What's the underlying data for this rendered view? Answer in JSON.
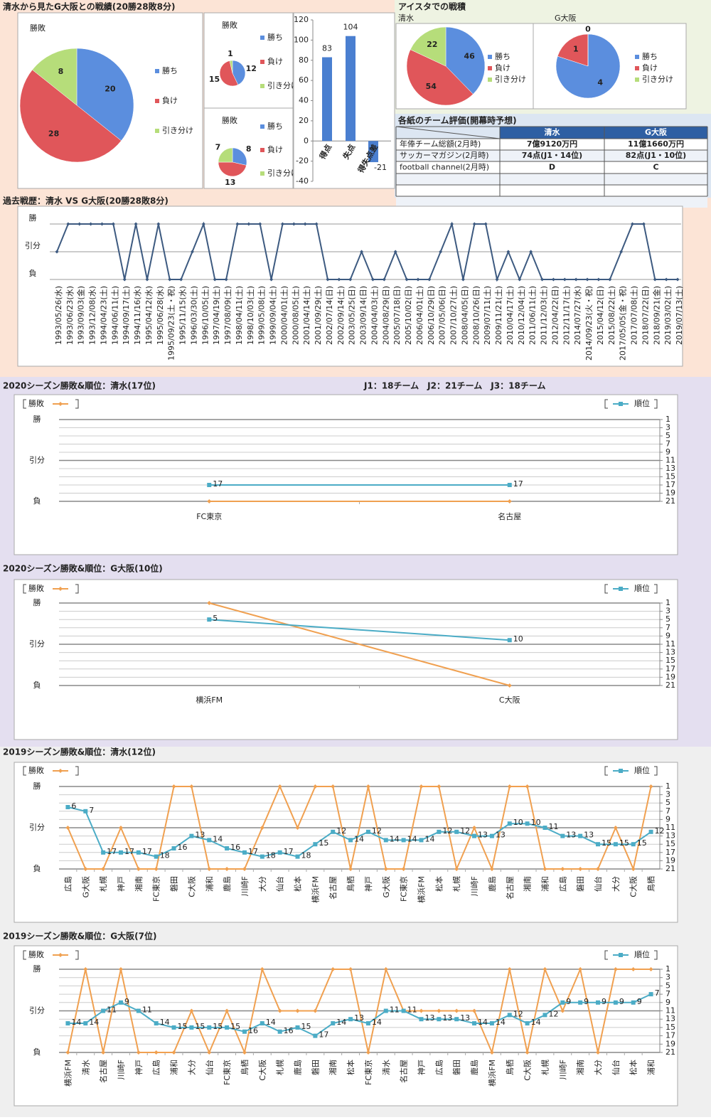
{
  "header": {
    "title": "清水から見たG大阪との戦績(20勝28敗8分)",
    "aisuta": "アイスタでの戦積"
  },
  "table": {
    "title": "各紙のチーム評価(開幕時予想)",
    "columns": [
      "清水",
      "G大阪"
    ],
    "rows": [
      {
        "label": "年俸チーム総額(2月時)",
        "cells": [
          "7億9120万円",
          "11億1660万円"
        ]
      },
      {
        "label": "サッカーマガジン(2月時)",
        "cells": [
          "74点(J1・14位)",
          "82点(J1・10位)"
        ]
      },
      {
        "label": "football channel(2月時)",
        "cells": [
          "D",
          "C"
        ]
      }
    ]
  },
  "chart_data": [
    {
      "type": "pie",
      "title": "勝敗",
      "categories": [
        "勝ち",
        "負け",
        "引き分け"
      ],
      "values": [
        20,
        28,
        8
      ],
      "colors": [
        "#5b8ede",
        "#e0565a",
        "#b6dd7a"
      ]
    },
    {
      "type": "pie",
      "title": "勝敗",
      "categories": [
        "勝ち",
        "負け",
        "引き分け"
      ],
      "values": [
        12,
        15,
        1
      ],
      "colors": [
        "#5b8ede",
        "#e0565a",
        "#b6dd7a"
      ]
    },
    {
      "type": "pie",
      "title": "勝敗",
      "categories": [
        "勝ち",
        "負け",
        "引き分け"
      ],
      "values": [
        8,
        13,
        7
      ],
      "colors": [
        "#5b8ede",
        "#e0565a",
        "#b6dd7a"
      ]
    },
    {
      "type": "bar",
      "categories": [
        "得点",
        "失点",
        "得失点差"
      ],
      "values": [
        83,
        104,
        -21
      ],
      "color": "#4a7fd0",
      "ylim": [
        -40,
        120
      ],
      "yticks": [
        -40,
        -20,
        0,
        20,
        40,
        60,
        80,
        100,
        120
      ]
    },
    {
      "type": "pie",
      "title": "清水",
      "categories": [
        "勝ち",
        "負け",
        "引き分け"
      ],
      "values": [
        46,
        54,
        22
      ],
      "colors": [
        "#5b8ede",
        "#e0565a",
        "#b6dd7a"
      ]
    },
    {
      "type": "pie",
      "title": "G大阪",
      "categories": [
        "勝ち",
        "負け",
        "引き分け"
      ],
      "values": [
        4,
        1,
        0
      ],
      "colors": [
        "#5b8ede",
        "#e0565a",
        "#b6dd7a"
      ]
    },
    {
      "type": "line",
      "title": "過去戦歴：清水 VS G大阪(20勝28敗8分)",
      "color": "#3d5a80",
      "ylim": [
        -1,
        1
      ],
      "yticks": [
        {
          "value": 1,
          "label": "勝"
        },
        {
          "value": 0,
          "label": "引分"
        },
        {
          "value": -1,
          "label": "負"
        }
      ],
      "categories": [
        "1993/05/26(水)",
        "1993/06/23(水)",
        "1993/09/03(金)",
        "1993/12/08(水)",
        "1994/04/23(土)",
        "1994/06/11(土)",
        "1994/09/17(土)",
        "1994/11/16(水)",
        "1995/04/12(水)",
        "1995/06/28(水)",
        "1995/09/23(土・祝)",
        "1995/11/15(水)",
        "1996/03/30(土)",
        "1996/10/05(土)",
        "1997/04/19(土)",
        "1997/08/09(土)",
        "1998/04/11(土)",
        "1998/10/03(土)",
        "1999/05/08(土)",
        "1999/09/04(土)",
        "2000/04/01(土)",
        "2000/08/05(土)",
        "2001/04/14(土)",
        "2001/09/29(土)",
        "2002/07/14(日)",
        "2002/09/14(土)",
        "2003/05/25(日)",
        "2003/09/14(日)",
        "2004/04/03(土)",
        "2004/08/29(日)",
        "2005/07/18(日)",
        "2005/10/02(日)",
        "2006/04/01(土)",
        "2006/10/29(日)",
        "2007/05/06(日)",
        "2007/10/27(土)",
        "2008/04/05(日)",
        "2008/10/26(日)",
        "2009/07/11(土)",
        "2009/11/21(土)",
        "2010/04/17(土)",
        "2010/12/04(土)",
        "2011/06/11(土)",
        "2011/12/03(土)",
        "2012/04/22(日)",
        "2012/11/17(土)",
        "2014/07/27(水)",
        "2014/09/23(火・祝)",
        "2015/04/12(日)",
        "2015/08/22(土)",
        "2017/05/05(金・祝)",
        "2017/07/08(土)",
        "2018/07/22(日)",
        "2018/09/21(金)",
        "2019/03/02(土)",
        "2019/07/13(土)"
      ],
      "values": [
        0,
        1,
        1,
        1,
        1,
        1,
        -1,
        1,
        -1,
        1,
        -1,
        -1,
        0,
        1,
        -1,
        -1,
        1,
        1,
        1,
        -1,
        1,
        1,
        1,
        1,
        -1,
        -1,
        -1,
        0,
        -1,
        -1,
        0,
        -1,
        -1,
        -1,
        0,
        1,
        -1,
        1,
        1,
        -1,
        0,
        -1,
        0,
        -1,
        -1,
        -1,
        -1,
        -1,
        -1,
        -1,
        0,
        1,
        1,
        -1,
        -1,
        -1
      ]
    },
    {
      "type": "combo",
      "title": "2020シーズン勝敗&順位：清水(17位)",
      "annotation": "J1：18チーム　J2：21チーム　J3：18チーム",
      "categories": [
        "FC東京",
        "名古屋"
      ],
      "ylim": [
        -1,
        1
      ],
      "yticks": [
        {
          "value": 1,
          "label": "勝"
        },
        {
          "value": 0,
          "label": "引分"
        },
        {
          "value": -1,
          "label": "負"
        }
      ],
      "y2lim": [
        21,
        1
      ],
      "y2ticks": [
        1,
        3,
        5,
        7,
        9,
        11,
        13,
        15,
        17,
        19,
        21
      ],
      "series": [
        {
          "name": "勝敗",
          "color": "#f0a050",
          "values": [
            -1,
            -1
          ]
        },
        {
          "name": "順位",
          "color": "#4bacc6",
          "axis": "y2",
          "values": [
            17,
            17
          ]
        }
      ]
    },
    {
      "type": "combo",
      "title": "2020シーズン勝敗&順位：G大阪(10位)",
      "categories": [
        "横浜FM",
        "C大阪"
      ],
      "ylim": [
        -1,
        1
      ],
      "yticks": [
        {
          "value": 1,
          "label": "勝"
        },
        {
          "value": 0,
          "label": "引分"
        },
        {
          "value": -1,
          "label": "負"
        }
      ],
      "y2lim": [
        21,
        1
      ],
      "y2ticks": [
        1,
        3,
        5,
        7,
        9,
        11,
        13,
        15,
        17,
        19,
        21
      ],
      "series": [
        {
          "name": "勝敗",
          "color": "#f0a050",
          "values": [
            1,
            -1
          ]
        },
        {
          "name": "順位",
          "color": "#4bacc6",
          "axis": "y2",
          "values": [
            5,
            10
          ]
        }
      ]
    },
    {
      "type": "combo",
      "title": "2019シーズン勝敗&順位：清水(12位)",
      "categories": [
        "広島",
        "G大阪",
        "札幌",
        "神戸",
        "湘南",
        "FC東京",
        "磐田",
        "C大阪",
        "浦和",
        "鹿島",
        "川崎F",
        "大分",
        "仙台",
        "松本",
        "横浜FM",
        "名古屋",
        "鳥栖",
        "神戸",
        "G大阪",
        "FC東京",
        "横浜FM",
        "松本",
        "札幌",
        "川崎F",
        "鹿島",
        "名古屋",
        "湘南",
        "浦和",
        "広島",
        "磐田",
        "仙台",
        "大分",
        "C大阪",
        "鳥栖"
      ],
      "ylim": [
        -1,
        1
      ],
      "yticks": [
        {
          "value": 1,
          "label": "勝"
        },
        {
          "value": 0,
          "label": "引分"
        },
        {
          "value": -1,
          "label": "負"
        }
      ],
      "y2lim": [
        21,
        1
      ],
      "y2ticks": [
        1,
        3,
        5,
        7,
        9,
        11,
        13,
        15,
        17,
        19,
        21
      ],
      "series": [
        {
          "name": "勝敗",
          "color": "#f0a050",
          "values": [
            0,
            -1,
            -1,
            0,
            -1,
            -1,
            1,
            1,
            -1,
            -1,
            -1,
            0,
            1,
            0,
            1,
            1,
            -1,
            1,
            -1,
            -1,
            1,
            1,
            -1,
            0,
            -1,
            1,
            1,
            -1,
            -1,
            -1,
            -1,
            0,
            -1,
            1
          ]
        },
        {
          "name": "順位",
          "color": "#4bacc6",
          "axis": "y2",
          "values": [
            6,
            7,
            17,
            17,
            17,
            18,
            16,
            13,
            14,
            16,
            17,
            18,
            17,
            18,
            15,
            12,
            14,
            12,
            14,
            14,
            14,
            12,
            12,
            13,
            13,
            10,
            10,
            11,
            13,
            13,
            15,
            15,
            15,
            12
          ]
        }
      ]
    },
    {
      "type": "combo",
      "title": "2019シーズン勝敗&順位：G大阪(7位)",
      "categories": [
        "横浜FM",
        "清水",
        "名古屋",
        "川崎F",
        "神戸",
        "広島",
        "浦和",
        "大分",
        "仙台",
        "FC東京",
        "鳥栖",
        "C大阪",
        "札幌",
        "鹿島",
        "磐田",
        "湘南",
        "松本",
        "FC東京",
        "清水",
        "名古屋",
        "神戸",
        "広島",
        "磐田",
        "鹿島",
        "横浜FM",
        "鳥栖",
        "C大阪",
        "札幌",
        "川崎F",
        "湘南",
        "大分",
        "仙台",
        "松本",
        "浦和"
      ],
      "ylim": [
        -1,
        1
      ],
      "yticks": [
        {
          "value": 1,
          "label": "勝"
        },
        {
          "value": 0,
          "label": "引分"
        },
        {
          "value": -1,
          "label": "負"
        }
      ],
      "y2lim": [
        21,
        1
      ],
      "y2ticks": [
        1,
        3,
        5,
        7,
        9,
        11,
        13,
        15,
        17,
        19,
        21
      ],
      "series": [
        {
          "name": "勝敗",
          "color": "#f0a050",
          "values": [
            -1,
            1,
            -1,
            1,
            -1,
            -1,
            -1,
            0,
            -1,
            0,
            -1,
            1,
            0,
            0,
            0,
            1,
            1,
            -1,
            1,
            0,
            0,
            0,
            0,
            0,
            -1,
            1,
            -1,
            1,
            0,
            1,
            -1,
            1,
            1,
            1
          ]
        },
        {
          "name": "順位",
          "color": "#4bacc6",
          "axis": "y2",
          "values": [
            14,
            14,
            11,
            9,
            11,
            14,
            15,
            15,
            15,
            15,
            16,
            14,
            16,
            15,
            17,
            14,
            13,
            14,
            11,
            11,
            13,
            13,
            13,
            14,
            14,
            12,
            14,
            12,
            9,
            9,
            9,
            9,
            9,
            7
          ]
        }
      ]
    }
  ]
}
